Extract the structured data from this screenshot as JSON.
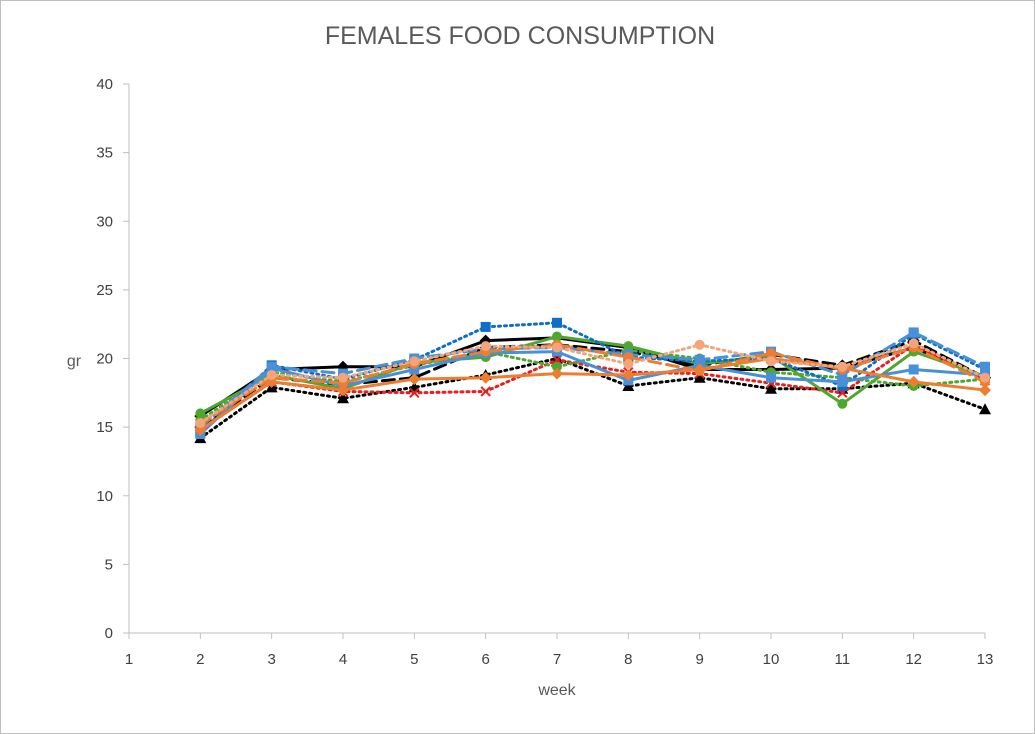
{
  "chart_data": {
    "type": "line",
    "title": "FEMALES FOOD CONSUMPTION",
    "xlabel": "week",
    "ylabel": "gr",
    "xlim": [
      1,
      13
    ],
    "ylim": [
      0,
      40
    ],
    "x_ticks": [
      1,
      2,
      3,
      4,
      5,
      6,
      7,
      8,
      9,
      10,
      11,
      12,
      13
    ],
    "y_ticks": [
      0,
      5,
      10,
      15,
      20,
      25,
      30,
      35,
      40
    ],
    "grid": false,
    "legend": "none",
    "x": [
      2,
      3,
      4,
      5,
      6,
      7,
      8,
      9,
      10,
      11,
      12,
      13
    ],
    "series": [
      {
        "color": "#000000",
        "dash": "solid",
        "marker": "diamond",
        "values": [
          15.8,
          19.2,
          19.4,
          19.4,
          21.3,
          21.5,
          20.8,
          19.2,
          19.2,
          19.3,
          20.8,
          18.6
        ]
      },
      {
        "color": "#000000",
        "dash": "dashed",
        "marker": "diamond",
        "values": [
          15.0,
          18.6,
          18.1,
          18.6,
          20.8,
          21.0,
          20.5,
          19.5,
          20.3,
          19.5,
          21.3,
          18.6
        ]
      },
      {
        "color": "#000000",
        "dash": "dotted",
        "marker": "triangle",
        "values": [
          14.2,
          17.9,
          17.1,
          17.9,
          18.8,
          20.0,
          18.0,
          18.6,
          17.8,
          17.8,
          18.2,
          16.3
        ]
      },
      {
        "color": "#e81f1f",
        "dash": "dotted",
        "marker": "x",
        "values": [
          14.8,
          18.3,
          17.6,
          17.5,
          17.6,
          19.9,
          19.0,
          18.9,
          18.2,
          17.5,
          21.0,
          18.4
        ]
      },
      {
        "color": "#4ea72e",
        "dash": "solid",
        "marker": "circle",
        "values": [
          16.0,
          18.8,
          17.8,
          19.7,
          20.1,
          21.6,
          20.9,
          19.6,
          20.2,
          16.7,
          20.5,
          18.7
        ]
      },
      {
        "color": "#4ea72e",
        "dash": "dotted",
        "marker": "circle",
        "values": [
          15.5,
          19.0,
          18.3,
          19.5,
          20.5,
          19.4,
          20.6,
          20.0,
          19.0,
          18.6,
          18.0,
          18.5
        ]
      },
      {
        "color": "#0f6fc6",
        "dash": "dotted",
        "marker": "square",
        "values": [
          14.6,
          19.5,
          18.5,
          19.9,
          22.3,
          22.6,
          20.1,
          19.8,
          20.0,
          18.0,
          21.8,
          19.2
        ]
      },
      {
        "color": "#4a90d9",
        "dash": "dashed",
        "marker": "square",
        "values": [
          15.0,
          19.4,
          18.9,
          20.0,
          20.7,
          20.8,
          20.3,
          19.9,
          20.5,
          18.8,
          21.9,
          19.4
        ]
      },
      {
        "color": "#4a90d9",
        "dash": "solid",
        "marker": "square",
        "values": [
          14.5,
          19.3,
          18.0,
          19.2,
          20.4,
          20.5,
          18.4,
          19.5,
          18.6,
          18.3,
          19.2,
          18.8
        ]
      },
      {
        "color": "#ed7d31",
        "dash": "solid",
        "marker": "diamond",
        "values": [
          14.8,
          18.3,
          17.7,
          18.5,
          18.6,
          18.9,
          18.8,
          19.2,
          20.0,
          19.3,
          18.3,
          17.7
        ]
      },
      {
        "color": "#ed7d31",
        "dash": "dashed",
        "marker": "circle",
        "values": [
          15.2,
          18.6,
          18.2,
          19.6,
          20.5,
          21.0,
          20.1,
          19.1,
          20.4,
          19.2,
          20.8,
          18.3
        ]
      },
      {
        "color": "#f4a47a",
        "dash": "dotted",
        "marker": "circle",
        "values": [
          15.3,
          18.8,
          18.6,
          19.8,
          20.9,
          20.8,
          19.6,
          21.0,
          19.8,
          19.4,
          21.1,
          18.6
        ]
      }
    ]
  }
}
